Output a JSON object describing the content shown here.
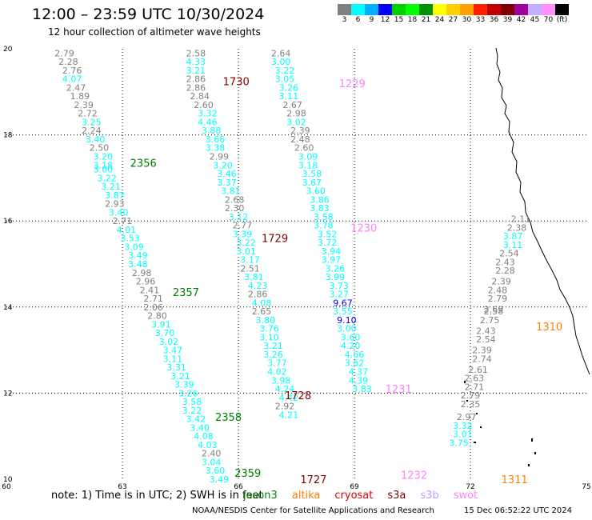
{
  "header": {
    "title": "12:00 – 23:59 UTC 10/30/2024",
    "subtitle": "12 hour collection of altimeter wave heights"
  },
  "colorbar": {
    "colors": [
      "#808080",
      "#00ffff",
      "#00b0ff",
      "#0000ff",
      "#00d000",
      "#00ff00",
      "#009000",
      "#ffff00",
      "#ffd000",
      "#ffa000",
      "#ff2000",
      "#c00000",
      "#800000",
      "#a000a0",
      "#c0b0ff",
      "#ff90ff",
      "#000000"
    ],
    "labels": [
      "3",
      "6",
      "9",
      "12",
      "15",
      "18",
      "21",
      "24",
      "27",
      "30",
      "33",
      "36",
      "39",
      "42",
      "45",
      "70",
      "(ft)"
    ]
  },
  "footer": {
    "note": "note:  1) Time is in UTC;  2) SWH is in feet",
    "missions": [
      {
        "name": "jason3",
        "color": "#008000"
      },
      {
        "name": "altika",
        "color": "#ff8000"
      },
      {
        "name": "cryosat",
        "color": "#e00000"
      },
      {
        "name": "s3a",
        "color": "#800000"
      },
      {
        "name": "s3b",
        "color": "#c0a0ff"
      },
      {
        "name": "swot",
        "color": "#ff80ff"
      }
    ],
    "credit": "NOAA/NESDIS Center for Satellite Applications and Research",
    "timestamp": "15 Dec 06:52:22 UTC 2024"
  },
  "chart_data": {
    "type": "scatter",
    "xlim": [
      60,
      75
    ],
    "ylim": [
      10,
      20
    ],
    "x_ticks": [
      "60",
      "63",
      "66",
      "69",
      "72",
      "75"
    ],
    "y_ticks": [
      "10",
      "12",
      "14",
      "16",
      "18",
      "20"
    ],
    "grid": true,
    "color_scale": {
      "thresholds": [
        3,
        6,
        9,
        12
      ],
      "colors": [
        "#808080",
        "#00ffff",
        "#00b0ff",
        "#0000ff"
      ]
    },
    "pass_labels": [
      {
        "text": "1730",
        "x": 65.6,
        "y": 19.25,
        "color": "#800000"
      },
      {
        "text": "1229",
        "x": 68.6,
        "y": 19.2,
        "color": "#ff80ff"
      },
      {
        "text": "2356",
        "x": 63.2,
        "y": 17.35,
        "color": "#008000"
      },
      {
        "text": "1729",
        "x": 66.6,
        "y": 15.6,
        "color": "#800000"
      },
      {
        "text": "1230",
        "x": 68.9,
        "y": 15.85,
        "color": "#ff80ff"
      },
      {
        "text": "2357",
        "x": 64.3,
        "y": 14.35,
        "color": "#008000"
      },
      {
        "text": "1310",
        "x": 73.7,
        "y": 13.55,
        "color": "#ff8000"
      },
      {
        "text": "1231",
        "x": 69.8,
        "y": 12.1,
        "color": "#ff80ff"
      },
      {
        "text": "1728",
        "x": 67.2,
        "y": 11.95,
        "color": "#800000"
      },
      {
        "text": "2358",
        "x": 65.4,
        "y": 11.45,
        "color": "#008000"
      },
      {
        "text": "2359",
        "x": 65.9,
        "y": 10.15,
        "color": "#008000"
      },
      {
        "text": "1727",
        "x": 67.6,
        "y": 10.0,
        "color": "#800000"
      },
      {
        "text": "1232",
        "x": 70.2,
        "y": 10.1,
        "color": "#ff80ff"
      },
      {
        "text": "1311",
        "x": 72.8,
        "y": 10.0,
        "color": "#ff8000"
      }
    ],
    "tracks": [
      {
        "name": "2356-2359",
        "points": [
          [
            61.5,
            19.9,
            2.79
          ],
          [
            61.6,
            19.7,
            2.28
          ],
          [
            61.7,
            19.5,
            2.76
          ],
          [
            61.7,
            19.3,
            4.07
          ],
          [
            61.8,
            19.1,
            2.47
          ],
          [
            61.9,
            18.9,
            1.89
          ],
          [
            62.0,
            18.7,
            2.39
          ],
          [
            62.1,
            18.5,
            2.72
          ],
          [
            62.2,
            18.3,
            3.25
          ],
          [
            62.2,
            18.1,
            2.24
          ],
          [
            62.3,
            17.9,
            3.4
          ],
          [
            62.4,
            17.7,
            2.5
          ],
          [
            62.5,
            17.5,
            3.2
          ],
          [
            62.5,
            17.3,
            3.18
          ],
          [
            62.5,
            17.2,
            3.0
          ],
          [
            62.6,
            17.0,
            3.22
          ],
          [
            62.7,
            16.8,
            3.21
          ],
          [
            62.8,
            16.6,
            3.87
          ],
          [
            62.8,
            16.4,
            2.93
          ],
          [
            62.9,
            16.2,
            3.4
          ],
          [
            63.0,
            16.0,
            2.71
          ],
          [
            63.1,
            15.8,
            4.01
          ],
          [
            63.2,
            15.6,
            3.53
          ],
          [
            63.3,
            15.4,
            3.09
          ],
          [
            63.4,
            15.2,
            3.49
          ],
          [
            63.4,
            15.0,
            3.48
          ],
          [
            63.5,
            14.8,
            2.98
          ],
          [
            63.6,
            14.6,
            2.96
          ],
          [
            63.7,
            14.4,
            2.41
          ],
          [
            63.8,
            14.2,
            2.71
          ],
          [
            63.8,
            14.0,
            2.06
          ],
          [
            63.9,
            13.8,
            2.8
          ],
          [
            64.0,
            13.6,
            3.91
          ],
          [
            64.1,
            13.4,
            3.7
          ],
          [
            64.2,
            13.2,
            3.02
          ],
          [
            64.3,
            13.0,
            3.47
          ],
          [
            64.3,
            12.8,
            3.11
          ],
          [
            64.4,
            12.6,
            3.31
          ],
          [
            64.5,
            12.4,
            3.21
          ],
          [
            64.6,
            12.2,
            3.39
          ],
          [
            64.7,
            12.0,
            3.26
          ],
          [
            64.8,
            11.8,
            3.58
          ],
          [
            64.8,
            11.6,
            3.22
          ],
          [
            64.9,
            11.4,
            3.42
          ],
          [
            65.0,
            11.2,
            3.4
          ],
          [
            65.1,
            11.0,
            4.08
          ],
          [
            65.2,
            10.8,
            4.03
          ],
          [
            65.3,
            10.6,
            2.4
          ],
          [
            65.3,
            10.4,
            3.04
          ],
          [
            65.4,
            10.2,
            3.6
          ],
          [
            65.5,
            10.0,
            3.49
          ]
        ]
      },
      {
        "name": "1730-1727",
        "points": [
          [
            64.9,
            19.9,
            2.58
          ],
          [
            64.9,
            19.7,
            4.33
          ],
          [
            64.9,
            19.5,
            3.21
          ],
          [
            64.9,
            19.3,
            2.86
          ],
          [
            64.9,
            19.1,
            2.86
          ],
          [
            65.0,
            18.9,
            2.84
          ],
          [
            65.1,
            18.7,
            2.6
          ],
          [
            65.2,
            18.5,
            3.32
          ],
          [
            65.2,
            18.3,
            4.46
          ],
          [
            65.3,
            18.1,
            3.88
          ],
          [
            65.4,
            17.9,
            3.66
          ],
          [
            65.4,
            17.7,
            3.38
          ],
          [
            65.5,
            17.5,
            2.99
          ],
          [
            65.6,
            17.3,
            3.2
          ],
          [
            65.7,
            17.1,
            3.46
          ],
          [
            65.7,
            16.9,
            3.37
          ],
          [
            65.8,
            16.7,
            3.81
          ],
          [
            65.9,
            16.5,
            2.68
          ],
          [
            65.9,
            16.3,
            2.3
          ],
          [
            66.0,
            16.1,
            3.12
          ],
          [
            66.1,
            15.9,
            2.77
          ],
          [
            66.1,
            15.7,
            3.39
          ],
          [
            66.2,
            15.5,
            3.22
          ],
          [
            66.2,
            15.3,
            3.01
          ],
          [
            66.3,
            15.1,
            3.17
          ],
          [
            66.3,
            14.9,
            2.51
          ],
          [
            66.4,
            14.7,
            3.81
          ],
          [
            66.5,
            14.5,
            4.23
          ],
          [
            66.5,
            14.3,
            2.86
          ],
          [
            66.6,
            14.1,
            4.08
          ],
          [
            66.6,
            13.9,
            2.65
          ],
          [
            66.7,
            13.7,
            3.8
          ],
          [
            66.8,
            13.5,
            3.76
          ],
          [
            66.8,
            13.3,
            3.1
          ],
          [
            66.9,
            13.1,
            3.21
          ],
          [
            66.9,
            12.9,
            3.26
          ],
          [
            67.0,
            12.7,
            3.77
          ],
          [
            67.0,
            12.5,
            4.02
          ],
          [
            67.1,
            12.3,
            3.98
          ],
          [
            67.2,
            12.1,
            4.24
          ],
          [
            67.3,
            11.9,
            4.42
          ],
          [
            67.2,
            11.7,
            2.92
          ],
          [
            67.3,
            11.5,
            4.21
          ]
        ]
      },
      {
        "name": "1229-1232",
        "points": [
          [
            67.1,
            19.9,
            2.64
          ],
          [
            67.1,
            19.7,
            3.0
          ],
          [
            67.2,
            19.5,
            3.22
          ],
          [
            67.2,
            19.3,
            3.05
          ],
          [
            67.3,
            19.1,
            3.26
          ],
          [
            67.3,
            18.9,
            3.11
          ],
          [
            67.4,
            18.7,
            2.67
          ],
          [
            67.5,
            18.5,
            2.98
          ],
          [
            67.5,
            18.3,
            3.02
          ],
          [
            67.6,
            18.1,
            2.39
          ],
          [
            67.6,
            17.9,
            2.48
          ],
          [
            67.7,
            17.7,
            2.6
          ],
          [
            67.8,
            17.5,
            3.09
          ],
          [
            67.8,
            17.3,
            3.18
          ],
          [
            67.9,
            17.1,
            3.58
          ],
          [
            67.9,
            16.9,
            3.67
          ],
          [
            68.0,
            16.7,
            3.6
          ],
          [
            68.1,
            16.5,
            3.86
          ],
          [
            68.1,
            16.3,
            3.83
          ],
          [
            68.2,
            16.1,
            3.58
          ],
          [
            68.2,
            15.9,
            3.78
          ],
          [
            68.3,
            15.7,
            3.52
          ],
          [
            68.3,
            15.5,
            3.72
          ],
          [
            68.4,
            15.3,
            3.94
          ],
          [
            68.4,
            15.1,
            3.97
          ],
          [
            68.5,
            14.9,
            3.26
          ],
          [
            68.5,
            14.7,
            3.99
          ],
          [
            68.6,
            14.5,
            3.73
          ],
          [
            68.6,
            14.3,
            3.27
          ],
          [
            68.7,
            14.1,
            9.67
          ],
          [
            68.7,
            13.9,
            3.55
          ],
          [
            68.8,
            13.7,
            9.1
          ],
          [
            68.8,
            13.5,
            3.0
          ],
          [
            68.9,
            13.3,
            3.6
          ],
          [
            68.9,
            13.1,
            4.2
          ],
          [
            69.0,
            12.9,
            4.66
          ],
          [
            69.0,
            12.7,
            3.62
          ],
          [
            69.1,
            12.5,
            4.37
          ],
          [
            69.1,
            12.3,
            4.39
          ],
          [
            69.2,
            12.1,
            3.83
          ]
        ]
      },
      {
        "name": "1310-1311",
        "points": [
          [
            73.3,
            16.05,
            2.11
          ],
          [
            73.2,
            15.85,
            2.38
          ],
          [
            73.1,
            15.65,
            3.87
          ],
          [
            73.1,
            15.45,
            3.11
          ],
          [
            73.0,
            15.25,
            2.54
          ],
          [
            72.9,
            15.05,
            2.43
          ],
          [
            72.9,
            14.85,
            2.28
          ],
          [
            72.8,
            14.6,
            2.39
          ],
          [
            72.7,
            14.4,
            2.48
          ],
          [
            72.7,
            14.2,
            2.79
          ],
          [
            72.6,
            13.95,
            2.69
          ],
          [
            72.6,
            13.9,
            2.58
          ],
          [
            72.5,
            13.7,
            2.75
          ],
          [
            72.4,
            13.45,
            2.43
          ],
          [
            72.4,
            13.25,
            2.54
          ],
          [
            72.3,
            13.0,
            2.39
          ],
          [
            72.3,
            12.8,
            2.74
          ],
          [
            72.2,
            12.55,
            2.61
          ],
          [
            72.1,
            12.35,
            2.63
          ],
          [
            72.1,
            12.15,
            2.71
          ],
          [
            72.0,
            11.95,
            2.79
          ],
          [
            72.0,
            11.75,
            2.35
          ],
          [
            71.9,
            11.45,
            2.97
          ],
          [
            71.8,
            11.25,
            3.32
          ],
          [
            71.8,
            11.05,
            3.01
          ],
          [
            71.7,
            10.85,
            3.75
          ]
        ]
      }
    ]
  }
}
